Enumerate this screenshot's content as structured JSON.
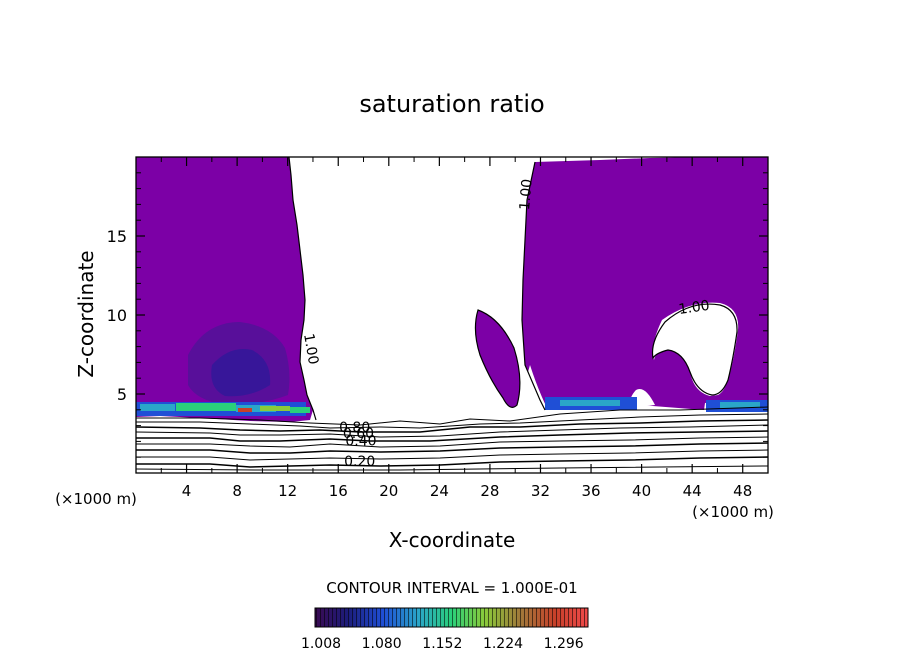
{
  "chart_data": {
    "type": "heatmap",
    "title": "saturation ratio",
    "xlabel": "X-coordinate",
    "ylabel": "Z-coordinate",
    "x_unit_left": "(×1000 m)",
    "x_unit_right": "(×1000 m)",
    "xlim": [
      0,
      50
    ],
    "ylim": [
      0,
      20
    ],
    "x_ticks": [
      4,
      8,
      12,
      16,
      20,
      24,
      28,
      32,
      36,
      40,
      44,
      48
    ],
    "y_ticks": [
      5,
      10,
      15
    ],
    "contour_interval_text": "CONTOUR INTERVAL = 1.000E-01",
    "colorbar_ticks": [
      "1.008",
      "1.080",
      "1.152",
      "1.224",
      "1.296"
    ],
    "colorbar_range": [
      1.008,
      1.332
    ],
    "contour_labels": [
      {
        "text": "1.00",
        "x": 13.5,
        "y": 7.8,
        "rot": 80
      },
      {
        "text": "1.00",
        "x": 31.2,
        "y": 17.6,
        "rot": -85
      },
      {
        "text": "1.00",
        "x": 44.2,
        "y": 10.2,
        "rot": -8
      },
      {
        "text": "0.80",
        "x": 17.3,
        "y": 2.6,
        "rot": 0
      },
      {
        "text": "0.60",
        "x": 17.6,
        "y": 2.2,
        "rot": 0
      },
      {
        "text": "0.40",
        "x": 17.8,
        "y": 1.75,
        "rot": 0
      },
      {
        "text": "0.20",
        "x": 17.7,
        "y": 0.45,
        "rot": 0
      }
    ],
    "supersaturated_regions": [
      {
        "name": "left",
        "x_range": [
          0,
          14
        ],
        "z_range": [
          3.9,
          20
        ]
      },
      {
        "name": "mid",
        "x_range": [
          26.8,
          30.2
        ],
        "z_range": [
          4.8,
          10.4
        ]
      },
      {
        "name": "right",
        "x_range": [
          30.5,
          50
        ],
        "z_range": [
          3.8,
          20
        ]
      }
    ],
    "colors": {
      "supersaturated": "#7c00a6",
      "background": "#ffffff",
      "contour": "#000000"
    }
  }
}
